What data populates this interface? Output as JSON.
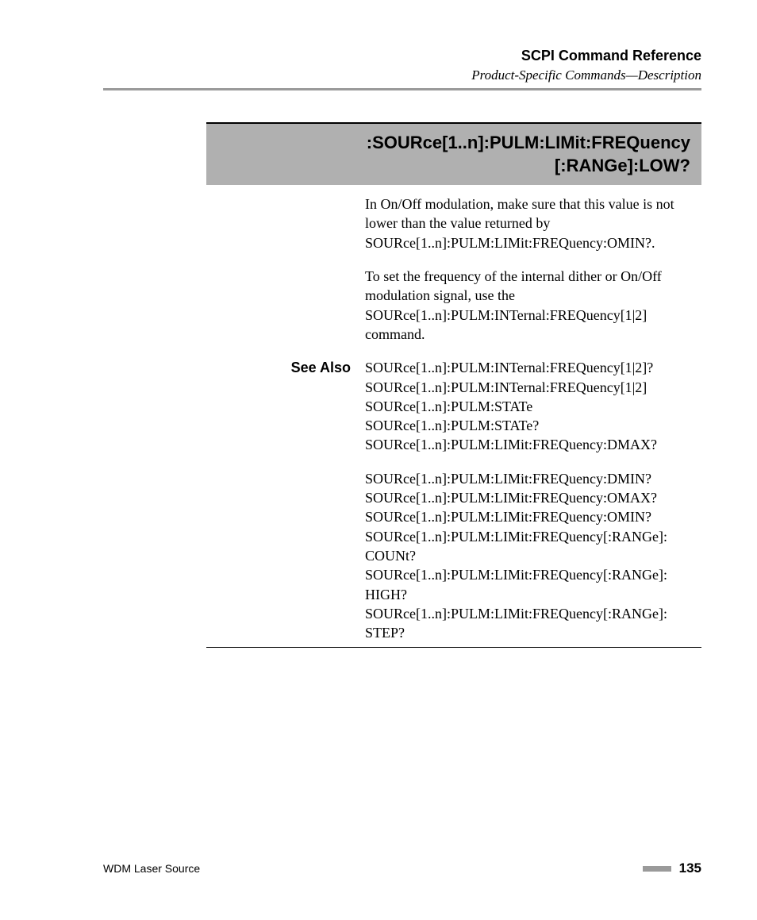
{
  "header": {
    "title": "SCPI Command Reference",
    "subtitle": "Product-Specific Commands—Description"
  },
  "command": {
    "line1": ":SOURce[1..n]:PULM:LIMit:FREQuency",
    "line2": "[:RANGe]:LOW?"
  },
  "paragraphs": {
    "p1": "In On/Off modulation, make sure that this value is not lower than the value returned by SOURce[1..n]:PULM:LIMit:FREQuency:OMIN?.",
    "p2": "To set the frequency of the internal dither or On/Off modulation signal, use the SOURce[1..n]:PULM:INTernal:FREQuency[1|2] command."
  },
  "see_also_label": "See Also",
  "see_also": {
    "g1": {
      "l1": "SOURce[1..n]:PULM:INTernal:FREQuency[1|2]?",
      "l2": "SOURce[1..n]:PULM:INTernal:FREQuency[1|2]",
      "l3": "SOURce[1..n]:PULM:STATe",
      "l4": "SOURce[1..n]:PULM:STATe?",
      "l5": "SOURce[1..n]:PULM:LIMit:FREQuency:DMAX?"
    },
    "g2": {
      "l1": "SOURce[1..n]:PULM:LIMit:FREQuency:DMIN?",
      "l2": "SOURce[1..n]:PULM:LIMit:FREQuency:OMAX?",
      "l3": "SOURce[1..n]:PULM:LIMit:FREQuency:OMIN?",
      "l4": "SOURce[1..n]:PULM:LIMit:FREQuency[:RANGe]:",
      "l5": "COUNt?",
      "l6": "SOURce[1..n]:PULM:LIMit:FREQuency[:RANGe]:",
      "l7": "HIGH?",
      "l8": "SOURce[1..n]:PULM:LIMit:FREQuency[:RANGe]:",
      "l9": "STEP?"
    }
  },
  "footer": {
    "product": "WDM Laser Source",
    "page": "135"
  }
}
